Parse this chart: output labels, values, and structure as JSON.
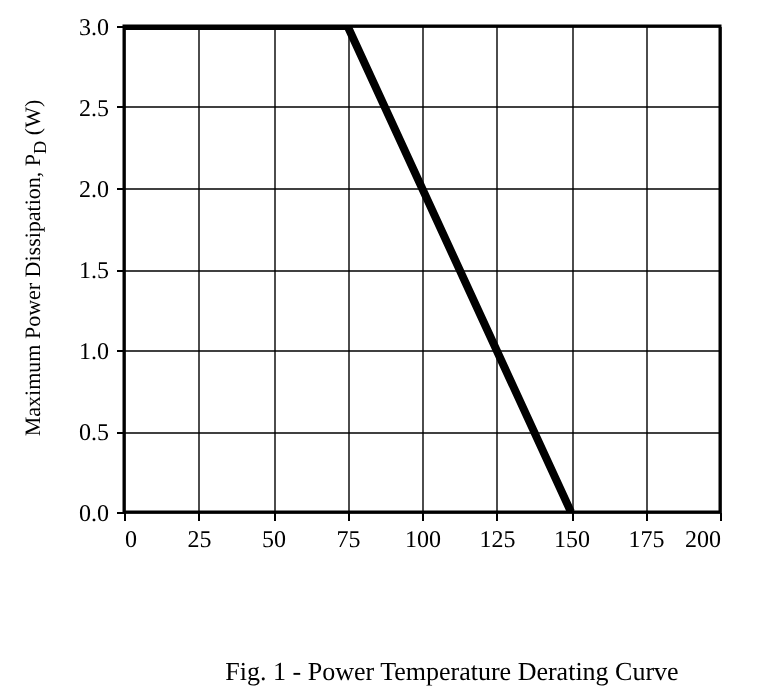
{
  "chart_data": {
    "type": "line",
    "ylabel": "Maximum Power Dissipation, P$_{D}$ (W)",
    "annotations": [
      "Fig. 1 - Power Temperature Derating Curve"
    ],
    "x": [
      0,
      75,
      150
    ],
    "series": [
      {
        "color": "#000000",
        "values": [
          3,
          3,
          0
        ]
      }
    ],
    "xlim": [
      0,
      200
    ],
    "xticks": [
      0,
      25,
      50,
      75,
      100,
      125,
      150,
      175,
      200
    ],
    "ylim": [
      0,
      3
    ],
    "yticks": [
      {
        "value": 0,
        "label": "0.0"
      },
      {
        "value": 0.5,
        "label": "0.5"
      },
      {
        "value": 1,
        "label": "1.0"
      },
      {
        "value": 1.5,
        "label": "1.5"
      },
      {
        "value": 2,
        "label": "2.0"
      },
      {
        "value": 2.5,
        "label": "2.5"
      },
      {
        "value": 3,
        "label": "3.0"
      }
    ],
    "grid": true,
    "line_style": "solid"
  }
}
